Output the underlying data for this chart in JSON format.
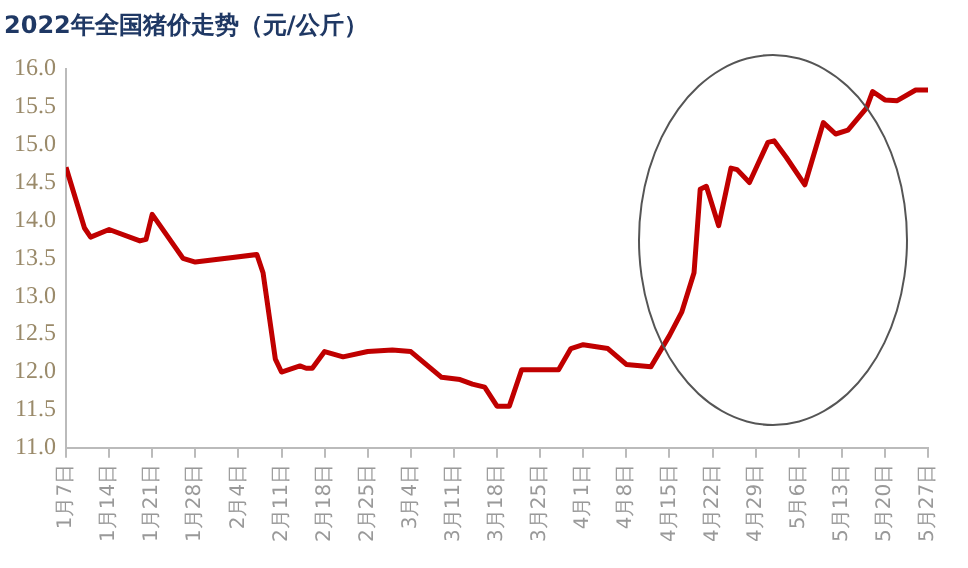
{
  "chart_data": {
    "type": "line",
    "title": "2022年全国猪价走势（元/公斤）",
    "x": [
      "2022-01-07",
      "2022-01-10",
      "2022-01-11",
      "2022-01-14",
      "2022-01-19",
      "2022-01-20",
      "2022-01-21",
      "2022-01-26",
      "2022-01-28",
      "2022-02-07",
      "2022-02-08",
      "2022-02-10",
      "2022-02-11",
      "2022-02-14",
      "2022-02-15",
      "2022-02-16",
      "2022-02-18",
      "2022-02-21",
      "2022-02-25",
      "2022-03-01",
      "2022-03-04",
      "2022-03-09",
      "2022-03-12",
      "2022-03-14",
      "2022-03-16",
      "2022-03-18",
      "2022-03-20",
      "2022-03-22",
      "2022-03-28",
      "2022-03-30",
      "2022-04-01",
      "2022-04-05",
      "2022-04-08",
      "2022-04-12",
      "2022-04-15",
      "2022-04-17",
      "2022-04-19",
      "2022-04-20",
      "2022-04-21",
      "2022-04-23",
      "2022-04-25",
      "2022-04-26",
      "2022-04-28",
      "2022-05-01",
      "2022-05-02",
      "2022-05-04",
      "2022-05-07",
      "2022-05-10",
      "2022-05-12",
      "2022-05-14",
      "2022-05-17",
      "2022-05-18",
      "2022-05-20",
      "2022-05-22",
      "2022-05-25",
      "2022-05-27"
    ],
    "series": [
      {
        "color": "#c00000",
        "values": [
          14.7,
          13.9,
          13.78,
          13.88,
          13.73,
          13.75,
          14.08,
          13.5,
          13.45,
          13.55,
          13.31,
          12.17,
          12.0,
          12.08,
          12.05,
          12.05,
          12.27,
          12.2,
          12.27,
          12.29,
          12.27,
          11.93,
          11.9,
          11.84,
          11.8,
          11.55,
          11.55,
          12.03,
          12.03,
          12.31,
          12.36,
          12.31,
          12.1,
          12.07,
          12.48,
          12.79,
          13.31,
          14.41,
          14.45,
          13.93,
          14.69,
          14.67,
          14.5,
          15.03,
          15.05,
          14.83,
          14.47,
          15.29,
          15.14,
          15.19,
          15.48,
          15.7,
          15.59,
          15.58,
          15.72,
          15.72
        ]
      }
    ],
    "xlim": [
      "2022-01-07",
      "2022-05-27"
    ],
    "xticks": [
      {
        "value": "2022-01-07",
        "label": "1月7日"
      },
      {
        "value": "2022-01-14",
        "label": "1月14日"
      },
      {
        "value": "2022-01-21",
        "label": "1月21日"
      },
      {
        "value": "2022-01-28",
        "label": "1月28日"
      },
      {
        "value": "2022-02-04",
        "label": "2月4日"
      },
      {
        "value": "2022-02-11",
        "label": "2月11日"
      },
      {
        "value": "2022-02-18",
        "label": "2月18日"
      },
      {
        "value": "2022-02-25",
        "label": "2月25日"
      },
      {
        "value": "2022-03-04",
        "label": "3月4日"
      },
      {
        "value": "2022-03-11",
        "label": "3月11日"
      },
      {
        "value": "2022-03-18",
        "label": "3月18日"
      },
      {
        "value": "2022-03-25",
        "label": "3月25日"
      },
      {
        "value": "2022-04-01",
        "label": "4月1日"
      },
      {
        "value": "2022-04-08",
        "label": "4月8日"
      },
      {
        "value": "2022-04-15",
        "label": "4月15日"
      },
      {
        "value": "2022-04-22",
        "label": "4月22日"
      },
      {
        "value": "2022-04-29",
        "label": "4月29日"
      },
      {
        "value": "2022-05-06",
        "label": "5月6日"
      },
      {
        "value": "2022-05-13",
        "label": "5月13日"
      },
      {
        "value": "2022-05-20",
        "label": "5月20日"
      },
      {
        "value": "2022-05-27",
        "label": "5月27日"
      }
    ],
    "ylim": [
      11,
      16
    ],
    "yticks": [
      {
        "value": 11,
        "label": "11.0"
      },
      {
        "value": 11.5,
        "label": "11.5"
      },
      {
        "value": 12,
        "label": "12.0"
      },
      {
        "value": 12.5,
        "label": "12.5"
      },
      {
        "value": 13,
        "label": "13.0"
      },
      {
        "value": 13.5,
        "label": "13.5"
      },
      {
        "value": 14,
        "label": "14.0"
      },
      {
        "value": 14.5,
        "label": "14.5"
      },
      {
        "value": 15,
        "label": "15.0"
      },
      {
        "value": 15.5,
        "label": "15.5"
      },
      {
        "value": 16,
        "label": "16.0"
      }
    ],
    "grid": false,
    "legend": false,
    "marker": "none",
    "line_style": "solid"
  }
}
